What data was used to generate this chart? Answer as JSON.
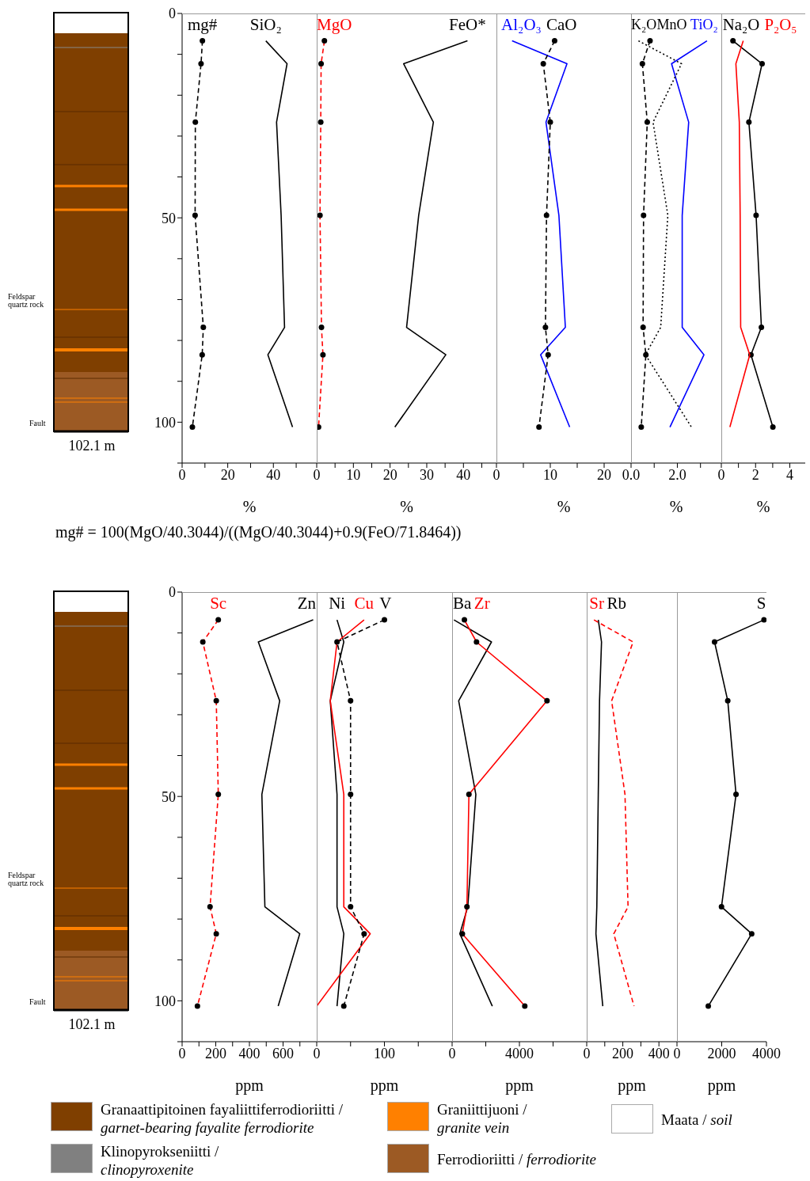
{
  "chart_data": [
    {
      "type": "other",
      "annotations": [
        "Feldspar quartz rock",
        "Fault",
        "102.1 m"
      ]
    },
    {
      "type": "line",
      "orientation": "horizontal",
      "xlabel": "%",
      "x": [
        6.7,
        12.3,
        26.6,
        49.4,
        76.8,
        83.5,
        101.2
      ],
      "series": [
        {
          "name": "mg#",
          "color": "#000000",
          "marker": "circle",
          "line_style": "dashed",
          "values": [
            8.9,
            8.3,
            5.8,
            5.7,
            9.3,
            8.8,
            4.5
          ]
        },
        {
          "name": "SiO₂",
          "color": "#000000",
          "marker": "none",
          "line_style": "solid",
          "values": [
            36.7,
            46.0,
            41.4,
            43.4,
            44.9,
            37.6,
            48.4
          ]
        }
      ],
      "xlim": [
        0,
        59
      ],
      "xticks": [
        0,
        {
          "value": 10,
          "label": null
        },
        20,
        {
          "value": 30,
          "label": null
        },
        40,
        {
          "value": 50,
          "label": null
        }
      ],
      "ylim": [
        110,
        0
      ],
      "yticks": [
        0,
        {
          "value": 10,
          "label": null
        },
        {
          "value": 20,
          "label": null
        },
        {
          "value": 30,
          "label": null
        },
        {
          "value": 40,
          "label": null
        },
        50,
        {
          "value": 60,
          "label": null
        },
        {
          "value": 70,
          "label": null
        },
        {
          "value": 80,
          "label": null
        },
        {
          "value": 90,
          "label": null
        },
        100,
        {
          "value": 110,
          "label": null
        }
      ],
      "annotations": [
        "mg# = 100(MgO/40.3044)/((MgO/40.3044)+0.9(FeO/71.8464))"
      ]
    },
    {
      "type": "line",
      "orientation": "horizontal",
      "xlabel": "%",
      "x": [
        6.7,
        12.3,
        26.6,
        49.4,
        76.8,
        83.5,
        101.2
      ],
      "series": [
        {
          "name": "MgO",
          "color": "#ff0000",
          "marker": "circle",
          "line_style": "dashed",
          "values": [
            2.1,
            1.2,
            1.1,
            0.9,
            1.3,
            1.7,
            0.5
          ]
        },
        {
          "name": "FeO*",
          "color": "#000000",
          "marker": "none",
          "line_style": "solid",
          "values": [
            41.1,
            23.7,
            31.8,
            27.8,
            24.5,
            35.2,
            21.3
          ]
        }
      ],
      "xlim": [
        0,
        49
      ],
      "xticks": [
        0,
        {
          "value": 5,
          "label": null
        },
        10,
        {
          "value": 15,
          "label": null
        },
        20,
        {
          "value": 25,
          "label": null
        },
        30,
        {
          "value": 35,
          "label": null
        },
        40,
        {
          "value": 45,
          "label": null
        }
      ],
      "ylim": [
        110,
        0
      ],
      "tick_labels": "x"
    },
    {
      "type": "line",
      "orientation": "horizontal",
      "xlabel": "%",
      "x": [
        6.7,
        12.3,
        26.6,
        49.4,
        76.8,
        83.5,
        101.2
      ],
      "series": [
        {
          "name": "Al₂O₃",
          "color": "#0000ff",
          "marker": "none",
          "line_style": "solid",
          "values": [
            2.9,
            13.1,
            9.2,
            11.6,
            12.8,
            8.2,
            13.6
          ]
        },
        {
          "name": "CaO",
          "color": "#000000",
          "marker": "circle",
          "line_style": "dashed",
          "values": [
            10.8,
            8.7,
            10.0,
            9.3,
            9.1,
            9.6,
            7.9
          ]
        }
      ],
      "xlim": [
        0,
        25
      ],
      "xticks": [
        0,
        {
          "value": 5,
          "label": null
        },
        10,
        {
          "value": 15,
          "label": null
        },
        20
      ],
      "ylim": [
        110,
        0
      ],
      "tick_labels": "x"
    },
    {
      "type": "line",
      "orientation": "horizontal",
      "xlabel": "%",
      "x": [
        6.7,
        12.3,
        26.6,
        49.4,
        76.8,
        83.5,
        101.2
      ],
      "series": [
        {
          "name": "MnO",
          "color": "#000000",
          "marker": "circle",
          "line_style": "dashed",
          "values": [
            0.82,
            0.49,
            0.7,
            0.54,
            0.52,
            0.64,
            0.44
          ]
        },
        {
          "name": "TiO₂",
          "color": "#0000ff",
          "marker": "none",
          "line_style": "solid",
          "values": [
            3.28,
            1.75,
            2.49,
            2.21,
            2.21,
            3.15,
            1.68
          ]
        },
        {
          "name": "K₂O",
          "color": "#000000",
          "marker": "none",
          "line_style": "dotted",
          "values": [
            0.32,
            2.18,
            0.95,
            1.59,
            1.28,
            0.62,
            2.61
          ]
        }
      ],
      "xlim": [
        0,
        3.9
      ],
      "xticks": [
        {
          "value": 0,
          "label": "0.0"
        },
        {
          "value": 1,
          "label": null
        },
        {
          "value": 2,
          "label": "2.0"
        },
        {
          "value": 3,
          "label": null
        }
      ],
      "ylim": [
        110,
        0
      ],
      "tick_labels": "x"
    },
    {
      "type": "line",
      "orientation": "horizontal",
      "xlabel": "%",
      "x": [
        6.7,
        12.3,
        26.6,
        49.4,
        76.8,
        83.5,
        101.2
      ],
      "series": [
        {
          "name": "Na₂O",
          "color": "#000000",
          "marker": "circle",
          "line_style": "solid",
          "values": [
            0.68,
            2.38,
            1.61,
            2.03,
            2.34,
            1.73,
            3.01
          ]
        },
        {
          "name": "P₂O₅",
          "color": "#ff0000",
          "marker": "none",
          "line_style": "solid",
          "values": [
            1.28,
            0.85,
            1.05,
            1.1,
            1.13,
            1.66,
            0.5
          ]
        }
      ],
      "xlim": [
        0,
        4.9
      ],
      "xticks": [
        0,
        {
          "value": 1,
          "label": null
        },
        2,
        {
          "value": 3,
          "label": null
        },
        4
      ],
      "ylim": [
        110,
        0
      ],
      "tick_labels": "x"
    },
    {
      "type": "other",
      "annotations": [
        "Feldspar quartz rock",
        "Fault",
        "102.1 m"
      ]
    },
    {
      "type": "line",
      "orientation": "horizontal",
      "xlabel": "ppm",
      "x": [
        6.8,
        12.2,
        26.6,
        49.5,
        77.0,
        83.6,
        101.3
      ],
      "series": [
        {
          "name": "Sc",
          "color": "#ff0000",
          "marker": "circle",
          "line_style": "dashed",
          "values": [
            215,
            123,
            203,
            215,
            166,
            203,
            91
          ]
        },
        {
          "name": "Zn",
          "color": "#000000",
          "marker": "none",
          "line_style": "solid",
          "values": [
            779,
            453,
            580,
            474,
            492,
            699,
            571
          ]
        }
      ],
      "xlim": [
        0,
        800
      ],
      "xticks": [
        0,
        {
          "value": 100,
          "label": null
        },
        200,
        {
          "value": 300,
          "label": null
        },
        400,
        {
          "value": 500,
          "label": null
        },
        600,
        {
          "value": 700,
          "label": null
        }
      ],
      "ylim": [
        110,
        0
      ],
      "yticks": [
        0,
        {
          "value": 10,
          "label": null
        },
        {
          "value": 20,
          "label": null
        },
        {
          "value": 30,
          "label": null
        },
        {
          "value": 40,
          "label": null
        },
        50,
        {
          "value": 60,
          "label": null
        },
        {
          "value": 70,
          "label": null
        },
        {
          "value": 80,
          "label": null
        },
        {
          "value": 90,
          "label": null
        },
        100,
        {
          "value": 110,
          "label": null
        }
      ]
    },
    {
      "type": "line",
      "orientation": "horizontal",
      "xlabel": "ppm",
      "x": [
        6.8,
        12.2,
        26.6,
        49.5,
        77.0,
        83.6,
        101.3
      ],
      "series": [
        {
          "name": "Ni",
          "color": "#000000",
          "marker": "none",
          "line_style": "solid",
          "values": [
            30,
            40,
            20,
            30,
            30,
            40,
            30
          ]
        },
        {
          "name": "Cu",
          "color": "#ff0000",
          "marker": "none",
          "line_style": "solid",
          "values": [
            70,
            30,
            20,
            40,
            40,
            79,
            0
          ]
        },
        {
          "name": "V",
          "color": "#000000",
          "marker": "circle",
          "line_style": "dashed",
          "values": [
            100,
            30,
            50,
            50,
            50,
            70,
            40
          ]
        }
      ],
      "xlim": [
        0,
        200
      ],
      "xticks": [
        0,
        {
          "value": 50,
          "label": null
        },
        100,
        {
          "value": 150,
          "label": null
        }
      ],
      "ylim": [
        110,
        0
      ],
      "tick_labels": "x"
    },
    {
      "type": "line",
      "orientation": "horizontal",
      "xlabel": "ppm",
      "x": [
        6.8,
        12.2,
        26.6,
        49.5,
        77.0,
        83.6,
        101.3
      ],
      "series": [
        {
          "name": "Ba",
          "color": "#000000",
          "marker": "none",
          "line_style": "solid",
          "values": [
            110,
            2340,
            390,
            1410,
            930,
            460,
            2390
          ]
        },
        {
          "name": "Zr",
          "color": "#ff0000",
          "marker": "circle",
          "line_style": "solid",
          "values": [
            730,
            1450,
            5640,
            1000,
            880,
            610,
            4320
          ]
        }
      ],
      "xlim": [
        0,
        8000
      ],
      "xticks": [
        0,
        {
          "value": 2000,
          "label": null
        },
        4000,
        {
          "value": 6000,
          "label": null
        }
      ],
      "ylim": [
        110,
        0
      ],
      "tick_labels": "x"
    },
    {
      "type": "line",
      "orientation": "horizontal",
      "xlabel": "ppm",
      "x": [
        6.8,
        12.2,
        26.6,
        49.5,
        77.0,
        83.6,
        101.3
      ],
      "series": [
        {
          "name": "Rb",
          "color": "#000000",
          "marker": "none",
          "line_style": "solid",
          "values": [
            64,
            82,
            71,
            64,
            56,
            51,
            89
          ]
        },
        {
          "name": "Sr",
          "color": "#ff0000",
          "marker": "none",
          "line_style": "dashed",
          "values": [
            40,
            257,
            138,
            212,
            229,
            150,
            262
          ]
        }
      ],
      "xlim": [
        0,
        500
      ],
      "xticks": [
        0,
        {
          "value": 100,
          "label": null
        },
        200,
        {
          "value": 300,
          "label": null
        },
        400
      ],
      "ylim": [
        110,
        0
      ],
      "tick_labels": "x"
    },
    {
      "type": "line",
      "orientation": "horizontal",
      "xlabel": "ppm",
      "x": [
        6.8,
        12.2,
        26.6,
        49.5,
        77.0,
        83.6,
        101.3
      ],
      "series": [
        {
          "name": "S",
          "color": "#000000",
          "marker": "circle",
          "line_style": "solid",
          "values": [
            3890,
            1680,
            2270,
            2640,
            1990,
            3340,
            1400
          ]
        }
      ],
      "xlim": [
        0,
        4000
      ],
      "xticks": [
        0,
        2000,
        4000
      ],
      "ylim": [
        110,
        0
      ],
      "tick_labels": "x"
    },
    {
      "type": "other",
      "annotations": [
        "Granaattipitoinen fayaliittiferrodioriitti / garnet-bearing fayalite ferrodiorite",
        "Klinopyrokseniitti / clinopyroxenite",
        "Graniittijuoni / granite vein",
        "Ferrodioriitti / ferrodiorite",
        "Maata / soil"
      ]
    }
  ]
}
